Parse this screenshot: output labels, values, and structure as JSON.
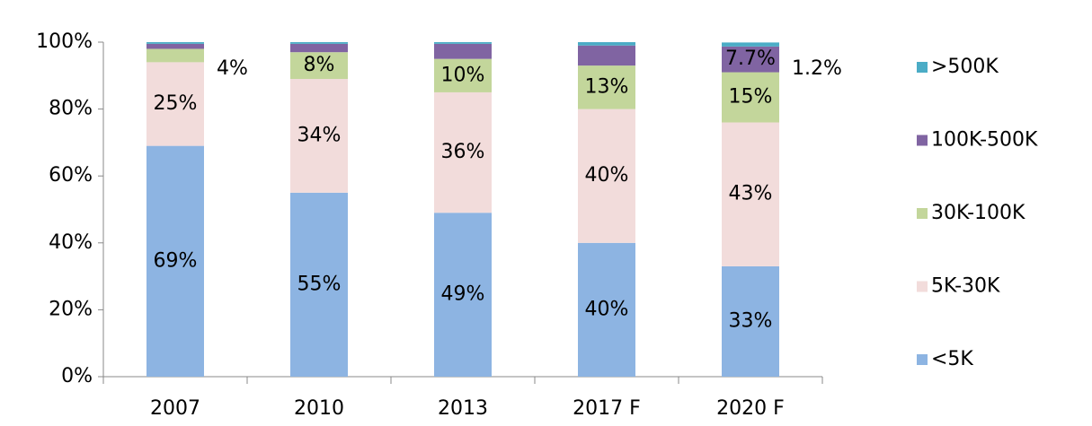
{
  "chart_data": {
    "type": "stacked_bar",
    "categories": [
      "2007",
      "2010",
      "2013",
      "2017 F",
      "2020 F"
    ],
    "series": [
      {
        "name": "<5K",
        "color": "#8db4e2",
        "values": [
          69,
          55,
          49,
          40,
          33
        ],
        "value_labels": [
          "69%",
          "55%",
          "49%",
          "40%",
          "33%"
        ]
      },
      {
        "name": "5K-30K",
        "color": "#f2dcdb",
        "values": [
          25,
          34,
          36,
          40,
          43
        ],
        "value_labels": [
          "25%",
          "34%",
          "36%",
          "40%",
          "43%"
        ]
      },
      {
        "name": "30K-100K",
        "color": "#c3d69b",
        "values": [
          4,
          8,
          10,
          13,
          15
        ],
        "value_labels": [
          "4%",
          "8%",
          "10%",
          "13%",
          "15%"
        ]
      },
      {
        "name": "100K-500K",
        "color": "#8064a2",
        "values": [
          1.5,
          2.5,
          4.5,
          6,
          7.7
        ],
        "value_labels": [
          null,
          null,
          null,
          null,
          "7.7%"
        ]
      },
      {
        "name": ">500K",
        "color": "#4bacc6",
        "values": [
          0.5,
          0.5,
          0.5,
          1,
          1.2
        ],
        "value_labels": [
          null,
          null,
          null,
          null,
          "1.2%"
        ]
      }
    ],
    "ylim": [
      0,
      100
    ],
    "yticks": [
      {
        "value": 0,
        "label": "0%"
      },
      {
        "value": 20,
        "label": "20%"
      },
      {
        "value": 40,
        "label": "40%"
      },
      {
        "value": 60,
        "label": "60%"
      },
      {
        "value": 80,
        "label": "80%"
      },
      {
        "value": 100,
        "label": "100%"
      }
    ],
    "legend": "right"
  }
}
